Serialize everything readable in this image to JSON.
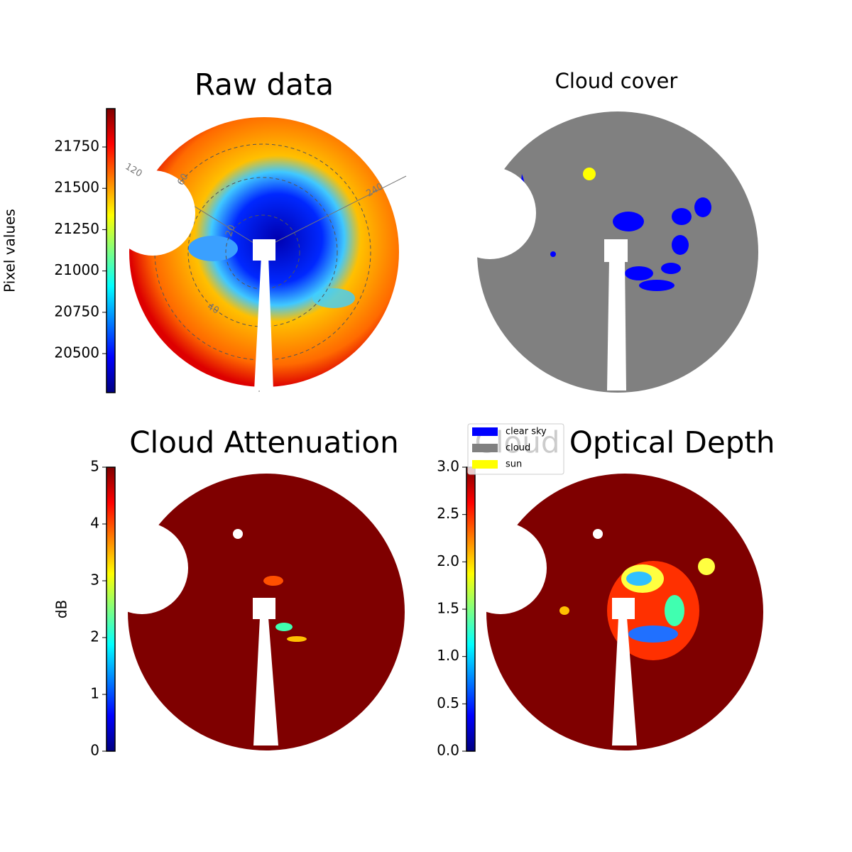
{
  "chart_data": [
    {
      "type": "heatmap",
      "title": "Raw data",
      "ylabel": "Pixel values",
      "colormap": "jet",
      "ylim": [
        20264,
        21982
      ],
      "yticks": [
        20500,
        20750,
        21000,
        21250,
        21500,
        21750
      ],
      "annotations": [
        "120",
        "240",
        "60",
        "20",
        "40"
      ]
    },
    {
      "type": "categorical",
      "title": "Cloud cover",
      "series": [
        {
          "name": "clear sky",
          "color": "#0000ff"
        },
        {
          "name": "cloud",
          "color": "#808080"
        },
        {
          "name": "sun",
          "color": "#ffff00"
        }
      ]
    },
    {
      "type": "heatmap",
      "title": "Cloud Attenuation",
      "ylabel": "dB",
      "colormap": "jet",
      "ylim": [
        0,
        5
      ],
      "yticks": [
        0,
        1,
        2,
        3,
        4,
        5
      ]
    },
    {
      "type": "heatmap",
      "title": "Cloud Optical Depth",
      "colormap": "jet",
      "ylim": [
        0,
        3
      ],
      "yticks": [
        {
          "value": 0,
          "label": "0.0"
        },
        0.5,
        {
          "value": 1,
          "label": "1.0"
        },
        1.5,
        {
          "value": 2,
          "label": "2.0"
        },
        2.5,
        {
          "value": 3,
          "label": "3.0"
        }
      ]
    }
  ]
}
